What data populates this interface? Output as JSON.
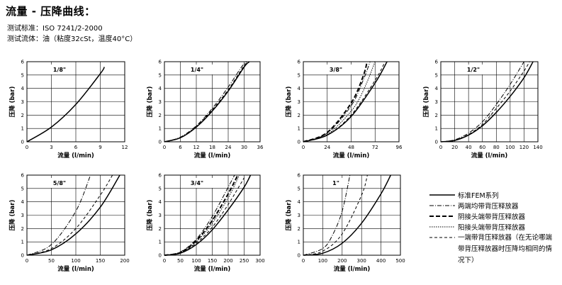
{
  "header": {
    "title": "流量 - 压降曲线：",
    "standard": "测试标准：ISO 7241/2-2000",
    "fluid": "测试流体：油（粘度32cSt，温度40°C）"
  },
  "legend": [
    {
      "style": "solid",
      "label": "标准FEM系列"
    },
    {
      "style": "dashdot",
      "label": "两端均带背压释放器"
    },
    {
      "style": "longdash",
      "label": "阴接头端带背压释放器"
    },
    {
      "style": "dotted",
      "label": "阳接头端带背压释放器"
    },
    {
      "style": "dashed",
      "label": "一端带背压释放器（在无论哪端带背压释放器时压降均相同的情况下）"
    }
  ],
  "chart_data": [
    {
      "type": "line",
      "title": "1/8\"",
      "xlabel": "流量 (l/min)",
      "ylabel": "压降 (bar)",
      "xlim": [
        0,
        12
      ],
      "ylim": [
        0,
        6
      ],
      "xticks": [
        "0",
        "3",
        "6",
        "9",
        "12"
      ],
      "yticks": [
        "0",
        "1",
        "2",
        "3",
        "4",
        "5",
        "6"
      ],
      "grid": true,
      "series": [
        {
          "style": "solid",
          "x": [
            0,
            3,
            6,
            9,
            9.5
          ],
          "y": [
            0,
            1.1,
            2.8,
            5.1,
            5.6
          ]
        }
      ]
    },
    {
      "type": "line",
      "title": "1/4\"",
      "xlabel": "流量 (l/min)",
      "ylabel": "压降 (bar)",
      "xlim": [
        0,
        36
      ],
      "ylim": [
        0,
        6
      ],
      "xticks": [
        "0",
        "6",
        "12",
        "18",
        "24",
        "30",
        "36"
      ],
      "yticks": [
        "0",
        "1",
        "2",
        "3",
        "4",
        "5",
        "6"
      ],
      "grid": true,
      "series": [
        {
          "style": "solid",
          "x": [
            0,
            6,
            12,
            18,
            24,
            30,
            32
          ],
          "y": [
            0,
            0.3,
            1.1,
            2.3,
            3.8,
            5.6,
            6
          ]
        },
        {
          "style": "dashdot",
          "x": [
            0,
            6,
            12,
            18,
            24,
            29,
            31
          ],
          "y": [
            0,
            0.35,
            1.2,
            2.5,
            4.1,
            5.6,
            6
          ]
        },
        {
          "style": "dashed",
          "x": [
            0,
            6,
            12,
            18,
            24,
            30,
            32
          ],
          "y": [
            0,
            0.3,
            1.15,
            2.4,
            3.9,
            5.7,
            6
          ]
        }
      ]
    },
    {
      "type": "line",
      "title": "3/8\"",
      "xlabel": "流量 (l/min)",
      "ylabel": "压降 (bar)",
      "xlim": [
        0,
        96
      ],
      "ylim": [
        0,
        6
      ],
      "xticks": [
        "0",
        "24",
        "48",
        "72",
        "96"
      ],
      "yticks": [
        "0",
        "1",
        "2",
        "3",
        "4",
        "5",
        "6"
      ],
      "grid": true,
      "series": [
        {
          "style": "solid",
          "x": [
            0,
            24,
            48,
            72,
            84
          ],
          "y": [
            0,
            0.5,
            1.9,
            4.4,
            6
          ]
        },
        {
          "style": "dashdot",
          "x": [
            0,
            24,
            48,
            60,
            67
          ],
          "y": [
            0,
            0.65,
            2.7,
            4.6,
            6
          ]
        },
        {
          "style": "longdash",
          "x": [
            0,
            24,
            48,
            60,
            64
          ],
          "y": [
            0,
            0.7,
            2.9,
            4.9,
            6
          ]
        },
        {
          "style": "dotted",
          "x": [
            0,
            24,
            48,
            60,
            72
          ],
          "y": [
            0,
            0.55,
            2.3,
            3.8,
            6
          ]
        },
        {
          "style": "dashed",
          "x": [
            0,
            24,
            48,
            72,
            82
          ],
          "y": [
            0,
            0.5,
            2.0,
            4.6,
            6
          ]
        }
      ]
    },
    {
      "type": "line",
      "title": "1/2\"",
      "xlabel": "流量 (l/min)",
      "ylabel": "压降 (bar)",
      "xlim": [
        0,
        140
      ],
      "ylim": [
        0,
        6
      ],
      "xticks": [
        "0",
        "20",
        "40",
        "60",
        "80",
        "100",
        "120",
        "140"
      ],
      "yticks": [
        "0",
        "1",
        "2",
        "3",
        "4",
        "5",
        "6"
      ],
      "grid": true,
      "series": [
        {
          "style": "solid",
          "x": [
            0,
            20,
            40,
            60,
            80,
            100,
            120,
            133
          ],
          "y": [
            0,
            0.1,
            0.5,
            1.2,
            2.2,
            3.4,
            4.8,
            6
          ]
        },
        {
          "style": "dashdot",
          "x": [
            0,
            20,
            40,
            60,
            80,
            100,
            120
          ],
          "y": [
            0,
            0.15,
            0.65,
            1.5,
            2.8,
            4.3,
            6
          ]
        },
        {
          "style": "dashed",
          "x": [
            0,
            20,
            40,
            60,
            80,
            100,
            120,
            128
          ],
          "y": [
            0,
            0.12,
            0.55,
            1.3,
            2.5,
            3.8,
            5.3,
            6
          ]
        }
      ]
    },
    {
      "type": "line",
      "title": "5/8\"",
      "xlabel": "流量 (l/min)",
      "ylabel": "压降 (bar)",
      "xlim": [
        0,
        200
      ],
      "ylim": [
        0,
        6
      ],
      "xticks": [
        "0",
        "50",
        "100",
        "150",
        "200"
      ],
      "yticks": [
        "0",
        "1",
        "2",
        "3",
        "4",
        "5",
        "6"
      ],
      "grid": true,
      "series": [
        {
          "style": "solid",
          "x": [
            0,
            50,
            100,
            150,
            190
          ],
          "y": [
            0,
            0.4,
            1.6,
            3.6,
            6
          ]
        },
        {
          "style": "dashdot",
          "x": [
            0,
            50,
            100,
            130
          ],
          "y": [
            0,
            0.8,
            3.3,
            6
          ]
        },
        {
          "style": "dashed",
          "x": [
            0,
            50,
            100,
            150,
            175
          ],
          "y": [
            0,
            0.5,
            2.0,
            4.5,
            6
          ]
        }
      ]
    },
    {
      "type": "line",
      "title": "3/4\"",
      "xlabel": "流量 (l/min)",
      "ylabel": "压降 (bar)",
      "xlim": [
        0,
        300
      ],
      "ylim": [
        0,
        6
      ],
      "xticks": [
        "0",
        "50",
        "100",
        "150",
        "200",
        "250",
        "300"
      ],
      "yticks": [
        "0",
        "1",
        "2",
        "3",
        "4",
        "5",
        "6"
      ],
      "grid": true,
      "series": [
        {
          "style": "solid",
          "x": [
            0,
            50,
            100,
            150,
            200,
            250,
            270
          ],
          "y": [
            0,
            0.15,
            0.8,
            1.9,
            3.4,
            5.1,
            6
          ]
        },
        {
          "style": "dashdot",
          "x": [
            0,
            50,
            100,
            150,
            200,
            220
          ],
          "y": [
            0,
            0.25,
            1.2,
            2.9,
            5.1,
            6
          ]
        },
        {
          "style": "longdash",
          "x": [
            0,
            50,
            100,
            150,
            200,
            230
          ],
          "y": [
            0,
            0.2,
            1.1,
            2.6,
            4.6,
            6
          ]
        },
        {
          "style": "dotted",
          "x": [
            0,
            50,
            100,
            150,
            200,
            235
          ],
          "y": [
            0,
            0.2,
            1.0,
            2.4,
            4.3,
            6
          ]
        },
        {
          "style": "dashed",
          "x": [
            0,
            50,
            100,
            150,
            200,
            250
          ],
          "y": [
            0,
            0.18,
            0.9,
            2.1,
            3.8,
            5.8
          ]
        }
      ]
    },
    {
      "type": "line",
      "title": "1\"",
      "xlabel": "流量 (l/min)",
      "ylabel": "压降 (bar)",
      "xlim": [
        0,
        500
      ],
      "ylim": [
        0,
        6
      ],
      "xticks": [
        "0",
        "100",
        "200",
        "300",
        "400",
        "500"
      ],
      "yticks": [
        "0",
        "1",
        "2",
        "3",
        "4",
        "5",
        "6"
      ],
      "grid": true,
      "series": [
        {
          "style": "solid",
          "x": [
            0,
            100,
            200,
            300,
            400,
            450
          ],
          "y": [
            0,
            0.15,
            0.9,
            2.4,
            4.6,
            6
          ]
        },
        {
          "style": "dashdot",
          "x": [
            0,
            100,
            150,
            200,
            240
          ],
          "y": [
            0,
            0.5,
            1.5,
            3.3,
            6
          ]
        },
        {
          "style": "dashed",
          "x": [
            0,
            100,
            200,
            300,
            330
          ],
          "y": [
            0,
            0.3,
            1.6,
            4.5,
            6
          ]
        }
      ]
    }
  ]
}
